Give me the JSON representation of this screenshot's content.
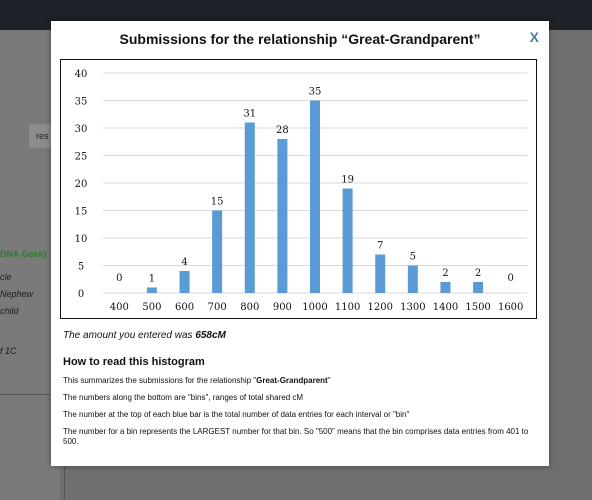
{
  "background": {
    "res_button": "res",
    "dna_geek": "DNA Geek)",
    "uncle": "cle",
    "nephew": "Nephew",
    "child": "child",
    "first_cousin": "f 1C"
  },
  "modal": {
    "title": "Submissions for the relationship “Great-Grandparent”",
    "close_label": "X",
    "amount_prefix": "The amount you entered was ",
    "amount_value": "658cM",
    "how_heading": "How to read this histogram",
    "info": {
      "line1_prefix": "This summarizes the submissions for the relationship \"",
      "line1_bold": "Great-Grandparent",
      "line1_suffix": "\"",
      "line2": "The numbers along the bottom are \"bins\", ranges of total shared cM",
      "line3": "The number at the top of each blue bar is the total number of data entries for each interval or \"bin\"",
      "line4": "The number for a bin represents the LARGEST number for that bin. So \"500\" means that the bin comprises data entries from 401 to 500."
    }
  },
  "colors": {
    "bar": "#5b9bd5",
    "close": "#4a7fa0"
  },
  "chart_data": {
    "type": "bar",
    "categories": [
      "400",
      "500",
      "600",
      "700",
      "800",
      "900",
      "1000",
      "1100",
      "1200",
      "1300",
      "1400",
      "1500",
      "1600"
    ],
    "values": [
      0,
      1,
      4,
      15,
      31,
      28,
      35,
      19,
      7,
      5,
      2,
      2,
      0
    ],
    "y_ticks": [
      0,
      5,
      10,
      15,
      20,
      25,
      30,
      35,
      40
    ],
    "ylim": [
      0,
      40
    ],
    "grid": true,
    "data_labels": true
  }
}
